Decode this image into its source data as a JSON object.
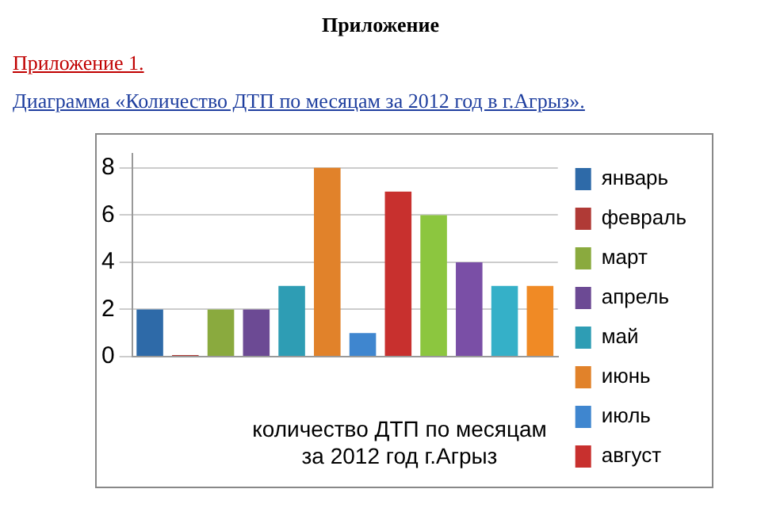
{
  "chart_data": {
    "type": "bar",
    "title": "Диаграмма «Количество ДТП по месяцам за 2012 год в г.Агрыз».",
    "annotations": [
      "Приложение",
      "Приложение 1."
    ],
    "xlabel": "количество ДТП по месяцам за 2012 год г.Агрыз",
    "categories": [
      null,
      null,
      null,
      null,
      null,
      null,
      null,
      null,
      null,
      null,
      null,
      null
    ],
    "series": [
      {
        "name": "январь",
        "color": "#2e6aa8",
        "values": [
          2,
          null,
          null,
          null,
          null,
          null,
          null,
          null,
          null,
          null,
          null,
          null
        ]
      },
      {
        "name": "февраль",
        "color": "#b03a36",
        "values": [
          null,
          0,
          null,
          null,
          null,
          null,
          null,
          null,
          null,
          null,
          null,
          null
        ]
      },
      {
        "name": "март",
        "color": "#8aaa3e",
        "values": [
          null,
          null,
          2,
          null,
          null,
          null,
          null,
          null,
          null,
          null,
          null,
          null
        ]
      },
      {
        "name": "апрель",
        "color": "#6c4a94",
        "values": [
          null,
          null,
          null,
          2,
          null,
          null,
          null,
          null,
          null,
          null,
          null,
          null
        ]
      },
      {
        "name": "май",
        "color": "#2e9db4",
        "values": [
          null,
          null,
          null,
          null,
          3,
          null,
          null,
          null,
          null,
          null,
          null,
          null
        ]
      },
      {
        "name": "июнь",
        "color": "#e1822a",
        "values": [
          null,
          null,
          null,
          null,
          null,
          8,
          null,
          null,
          null,
          null,
          null,
          null
        ]
      },
      {
        "name": "июль",
        "color": "#3f86cf",
        "values": [
          null,
          null,
          null,
          null,
          null,
          null,
          1,
          null,
          null,
          null,
          null,
          null
        ]
      },
      {
        "name": "август",
        "color": "#c8302e",
        "values": [
          null,
          null,
          null,
          null,
          null,
          null,
          null,
          7,
          null,
          null,
          null,
          null
        ]
      },
      {
        "color": "#8cc63f",
        "values": [
          null,
          null,
          null,
          null,
          null,
          null,
          null,
          null,
          6,
          null,
          null,
          null
        ]
      },
      {
        "color": "#7a4fa6",
        "values": [
          null,
          null,
          null,
          null,
          null,
          null,
          null,
          null,
          null,
          4,
          null,
          null
        ]
      },
      {
        "color": "#35b0c8",
        "values": [
          null,
          null,
          null,
          null,
          null,
          null,
          null,
          null,
          null,
          null,
          3,
          null
        ]
      },
      {
        "color": "#f08a25",
        "values": [
          null,
          null,
          null,
          null,
          null,
          null,
          null,
          null,
          null,
          null,
          null,
          3
        ]
      }
    ],
    "ylim": [
      0,
      8.6
    ],
    "yticks": [
      0,
      2,
      4,
      6,
      8
    ],
    "grid": "y",
    "legend": "right"
  }
}
